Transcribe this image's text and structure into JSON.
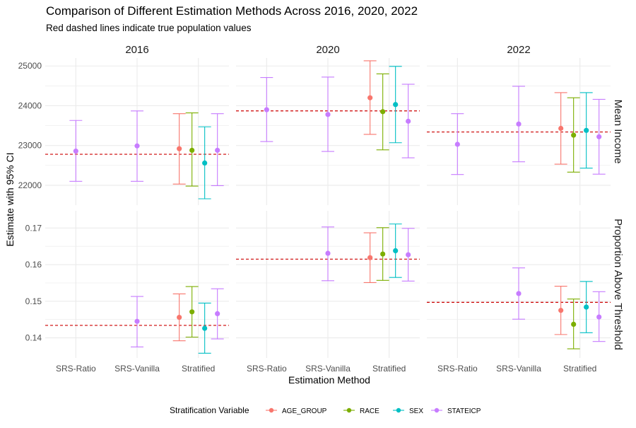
{
  "title": "Comparison of Different Estimation Methods Across 2016, 2020, 2022",
  "subtitle": "Red dashed lines indicate true population values",
  "colors": {
    "AGE_GROUP": "#f8766d",
    "RACE": "#7cae00",
    "SEX": "#00bfc4",
    "STATEICP": "#c77cff",
    "reference_line": "#cc0000",
    "grid": "#ebebeb"
  },
  "chart_data": {
    "type": "scatter",
    "title": "Comparison of Different Estimation Methods Across 2016, 2020, 2022",
    "subtitle": "Red dashed lines indicate true population values",
    "xlabel": "Estimation Method",
    "ylabel": "Estimate with 95% CI",
    "categories": [
      "SRS-Ratio",
      "SRS-Vanilla",
      "Stratified"
    ],
    "years": [
      "2016",
      "2020",
      "2022"
    ],
    "legend": {
      "title": "Stratification Variable",
      "position": "bottom",
      "entries": [
        "AGE_GROUP",
        "RACE",
        "SEX",
        "STATEICP"
      ]
    },
    "grid": true,
    "rows": [
      {
        "label": "Mean Income",
        "ylim": [
          21500,
          25200
        ],
        "yticks": [
          22000,
          23000,
          24000,
          25000
        ],
        "ytick_labels": [
          "22000",
          "23000",
          "24000",
          "25000"
        ],
        "true_values": {
          "2016": 22780,
          "2020": 23870,
          "2022": 23340
        },
        "points": [
          {
            "year": "2016",
            "method": "SRS-Ratio",
            "group": "STATEICP",
            "est": 22860,
            "lo": 22100,
            "hi": 23630
          },
          {
            "year": "2016",
            "method": "SRS-Vanilla",
            "group": "STATEICP",
            "est": 22990,
            "lo": 22100,
            "hi": 23870
          },
          {
            "year": "2016",
            "method": "Stratified",
            "group": "AGE_GROUP",
            "est": 22920,
            "lo": 22030,
            "hi": 23800
          },
          {
            "year": "2016",
            "method": "Stratified",
            "group": "RACE",
            "est": 22880,
            "lo": 21980,
            "hi": 23820
          },
          {
            "year": "2016",
            "method": "Stratified",
            "group": "SEX",
            "est": 22560,
            "lo": 21660,
            "hi": 23470
          },
          {
            "year": "2016",
            "method": "Stratified",
            "group": "STATEICP",
            "est": 22880,
            "lo": 21990,
            "hi": 23800
          },
          {
            "year": "2020",
            "method": "SRS-Ratio",
            "group": "STATEICP",
            "est": 23900,
            "lo": 23100,
            "hi": 24710
          },
          {
            "year": "2020",
            "method": "SRS-Vanilla",
            "group": "STATEICP",
            "est": 23780,
            "lo": 22850,
            "hi": 24720
          },
          {
            "year": "2020",
            "method": "Stratified",
            "group": "AGE_GROUP",
            "est": 24200,
            "lo": 23280,
            "hi": 25130
          },
          {
            "year": "2020",
            "method": "Stratified",
            "group": "RACE",
            "est": 23850,
            "lo": 22890,
            "hi": 24800
          },
          {
            "year": "2020",
            "method": "Stratified",
            "group": "SEX",
            "est": 24030,
            "lo": 23070,
            "hi": 24990
          },
          {
            "year": "2020",
            "method": "Stratified",
            "group": "STATEICP",
            "est": 23610,
            "lo": 22690,
            "hi": 24540
          },
          {
            "year": "2022",
            "method": "SRS-Ratio",
            "group": "STATEICP",
            "est": 23030,
            "lo": 22270,
            "hi": 23800
          },
          {
            "year": "2022",
            "method": "SRS-Vanilla",
            "group": "STATEICP",
            "est": 23540,
            "lo": 22590,
            "hi": 24490
          },
          {
            "year": "2022",
            "method": "Stratified",
            "group": "AGE_GROUP",
            "est": 23430,
            "lo": 22530,
            "hi": 24330
          },
          {
            "year": "2022",
            "method": "Stratified",
            "group": "RACE",
            "est": 23260,
            "lo": 22330,
            "hi": 24200
          },
          {
            "year": "2022",
            "method": "Stratified",
            "group": "SEX",
            "est": 23380,
            "lo": 22430,
            "hi": 24330
          },
          {
            "year": "2022",
            "method": "Stratified",
            "group": "STATEICP",
            "est": 23220,
            "lo": 22280,
            "hi": 24160
          }
        ]
      },
      {
        "label": "Proportion Above Threshold",
        "ylim": [
          0.1345,
          0.1747
        ],
        "yticks": [
          0.14,
          0.15,
          0.16,
          0.17
        ],
        "ytick_labels": [
          "0.14",
          "0.15",
          "0.16",
          "0.17"
        ],
        "true_values": {
          "2016": 0.1434,
          "2020": 0.1615,
          "2022": 0.1497
        },
        "points": [
          {
            "year": "2016",
            "method": "SRS-Vanilla",
            "group": "STATEICP",
            "est": 0.1445,
            "lo": 0.1375,
            "hi": 0.1513
          },
          {
            "year": "2016",
            "method": "Stratified",
            "group": "AGE_GROUP",
            "est": 0.1456,
            "lo": 0.1392,
            "hi": 0.152
          },
          {
            "year": "2016",
            "method": "Stratified",
            "group": "RACE",
            "est": 0.1471,
            "lo": 0.1402,
            "hi": 0.154
          },
          {
            "year": "2016",
            "method": "Stratified",
            "group": "SEX",
            "est": 0.1426,
            "lo": 0.1358,
            "hi": 0.1495
          },
          {
            "year": "2016",
            "method": "Stratified",
            "group": "STATEICP",
            "est": 0.1466,
            "lo": 0.1397,
            "hi": 0.1534
          },
          {
            "year": "2020",
            "method": "SRS-Vanilla",
            "group": "STATEICP",
            "est": 0.1631,
            "lo": 0.1556,
            "hi": 0.1703
          },
          {
            "year": "2020",
            "method": "Stratified",
            "group": "AGE_GROUP",
            "est": 0.1619,
            "lo": 0.1551,
            "hi": 0.1687
          },
          {
            "year": "2020",
            "method": "Stratified",
            "group": "RACE",
            "est": 0.1629,
            "lo": 0.1557,
            "hi": 0.1701
          },
          {
            "year": "2020",
            "method": "Stratified",
            "group": "SEX",
            "est": 0.1638,
            "lo": 0.1565,
            "hi": 0.1711
          },
          {
            "year": "2020",
            "method": "Stratified",
            "group": "STATEICP",
            "est": 0.1627,
            "lo": 0.1555,
            "hi": 0.1699
          },
          {
            "year": "2022",
            "method": "SRS-Vanilla",
            "group": "STATEICP",
            "est": 0.1521,
            "lo": 0.1451,
            "hi": 0.1591
          },
          {
            "year": "2022",
            "method": "Stratified",
            "group": "AGE_GROUP",
            "est": 0.1475,
            "lo": 0.1409,
            "hi": 0.1541
          },
          {
            "year": "2022",
            "method": "Stratified",
            "group": "RACE",
            "est": 0.1437,
            "lo": 0.137,
            "hi": 0.1506
          },
          {
            "year": "2022",
            "method": "Stratified",
            "group": "SEX",
            "est": 0.1484,
            "lo": 0.1414,
            "hi": 0.1554
          },
          {
            "year": "2022",
            "method": "Stratified",
            "group": "STATEICP",
            "est": 0.1457,
            "lo": 0.139,
            "hi": 0.1526
          }
        ]
      }
    ]
  }
}
